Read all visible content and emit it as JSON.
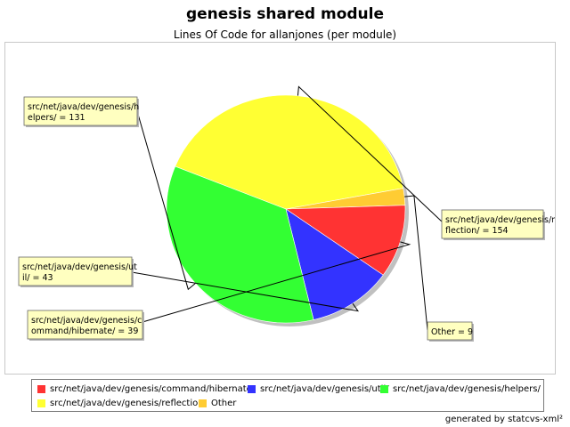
{
  "chart_data": {
    "type": "pie",
    "title": "genesis shared module",
    "subtitle": "Lines Of Code for allanjones (per module)",
    "slices": [
      {
        "name": "src/net/java/dev/genesis/reflection/",
        "value": 154,
        "color": "#ffff33",
        "label": "src/net/java/dev/genesis/reflection/ = 154"
      },
      {
        "name": "Other",
        "value": 9,
        "color": "#ffcc33",
        "label": "Other = 9"
      },
      {
        "name": "src/net/java/dev/genesis/command/hibernate/",
        "value": 39,
        "color": "#ff3333",
        "label": "src/net/java/dev/genesis/command/hibernate/ = 39"
      },
      {
        "name": "src/net/java/dev/genesis/util/",
        "value": 43,
        "color": "#3333ff",
        "label": "src/net/java/dev/genesis/util/ = 43"
      },
      {
        "name": "src/net/java/dev/genesis/helpers/",
        "value": 131,
        "color": "#33ff33",
        "label": "src/net/java/dev/genesis/helpers/ = 131"
      }
    ],
    "legend_position": "bottom",
    "legend": [
      {
        "name": "src/net/java/dev/genesis/command/hibernate/",
        "color": "#ff3333"
      },
      {
        "name": "src/net/java/dev/genesis/util/",
        "color": "#3333ff"
      },
      {
        "name": "src/net/java/dev/genesis/helpers/",
        "color": "#33ff33"
      },
      {
        "name": "src/net/java/dev/genesis/reflection/",
        "color": "#ffff33"
      },
      {
        "name": "Other",
        "color": "#ffcc33"
      }
    ]
  },
  "footer": "generated by statcvs-xml²"
}
